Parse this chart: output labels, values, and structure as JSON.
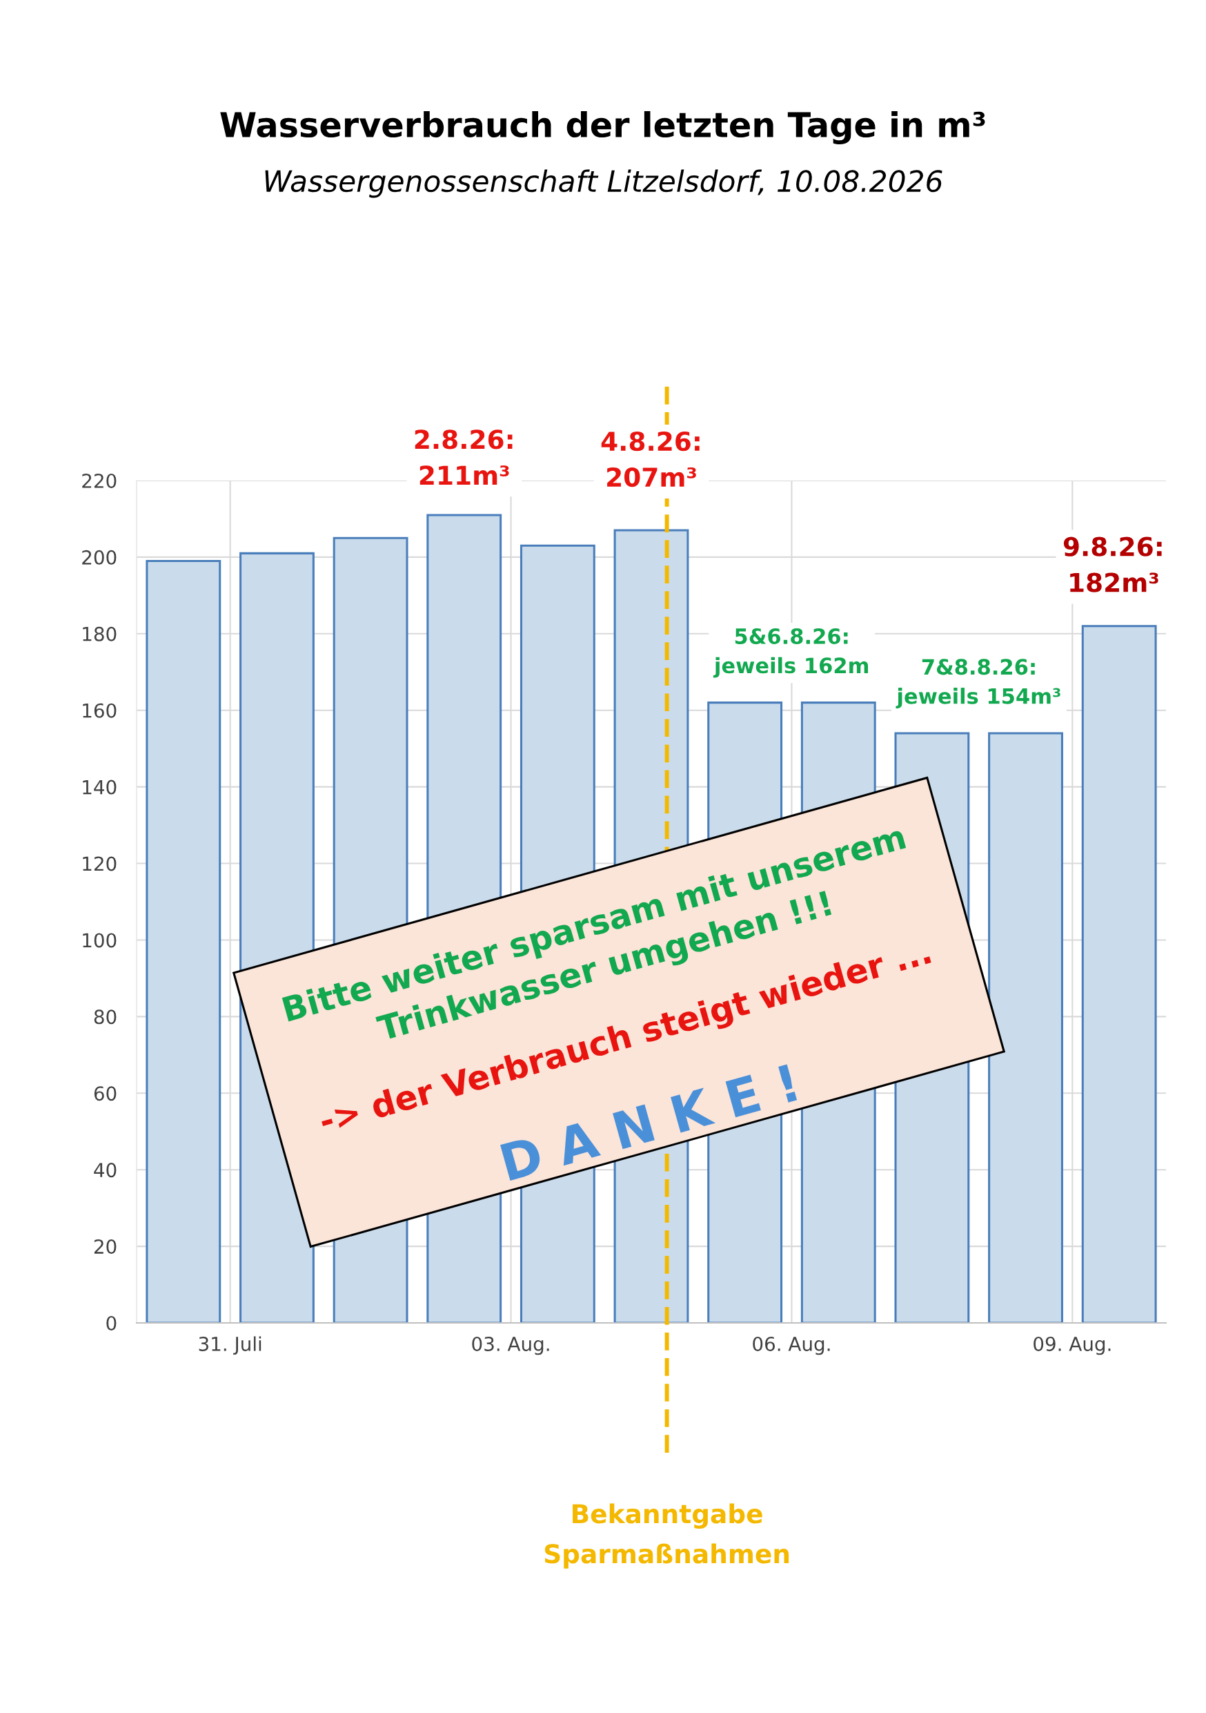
{
  "chart_data": {
    "type": "bar",
    "title": "Wasserverbrauch der letzten Tage in m³",
    "subtitle": "Wassergenossenschaft Litzelsdorf, 10.08.2026",
    "x": [
      "2026-07-30T12:00",
      "2026-07-31T12:00",
      "2026-08-01T12:00",
      "2026-08-02T12:00",
      "2026-08-03T12:00",
      "2026-08-04T12:00",
      "2026-08-05T12:00",
      "2026-08-06T12:00",
      "2026-08-07T12:00",
      "2026-08-08T12:00",
      "2026-08-09T12:00"
    ],
    "values": [
      199,
      201,
      205,
      211,
      203,
      207,
      162,
      162,
      154,
      154,
      182
    ],
    "color": "#cadcec",
    "xlim": [
      "2026-07-30",
      "2026-08-10"
    ],
    "xticks": [
      {
        "value": "2026-07-31",
        "label": "31. Juli"
      },
      {
        "value": "2026-08-03",
        "label": "03. Aug."
      },
      {
        "value": "2026-08-06",
        "label": "06. Aug."
      },
      {
        "value": "2026-08-09",
        "label": "09. Aug."
      }
    ],
    "ylim": [
      0,
      220
    ],
    "yticks": [
      0,
      20,
      40,
      60,
      80,
      100,
      120,
      140,
      160,
      180,
      200,
      220
    ],
    "grid": true,
    "ref_lines": [
      {
        "axis": "x",
        "value": "2026-08-04T16:00",
        "label": "Bekanntgabe\nSparmaßnahmen",
        "color": "#f4b800",
        "line_style": "dashed"
      }
    ],
    "annotations": [
      {
        "text": "2.8.26:\n211m³",
        "x": "2026-08-02T12:00",
        "y": 211
      },
      {
        "text": "4.8.26:\n207m³",
        "x": "2026-08-04T12:00",
        "y": 207
      },
      {
        "text": "5&6.8.26:\njeweils 162m",
        "x": "2026-08-05T12:00",
        "y": 162
      },
      {
        "text": "7&8.8.26:\njeweils 154m³",
        "x": "2026-08-07T12:00",
        "y": 154
      },
      {
        "text": "9.8.26:\n182m³",
        "x": "2026-08-09T12:00",
        "y": 182
      },
      "Bitte weiter sparsam mit unserem\nTrinkwasser umgehen !!!",
      "-> der Verbrauch steigt wieder ...",
      "D A N K E !"
    ]
  }
}
